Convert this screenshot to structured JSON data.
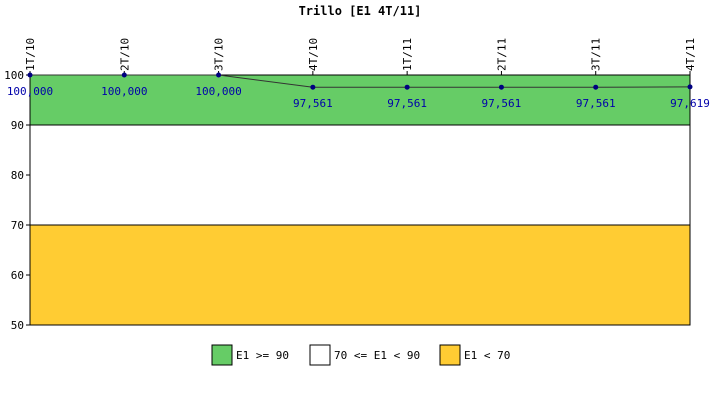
{
  "chart_data": {
    "type": "line",
    "title": "Trillo [E1 4T/11]",
    "xlabel": "",
    "ylabel": "",
    "categories": [
      "1T/10",
      "2T/10",
      "3T/10",
      "4T/10",
      "1T/11",
      "2T/11",
      "3T/11",
      "4T/11"
    ],
    "series": [
      {
        "values": [
          100,
          100,
          100,
          97.561,
          97.561,
          97.561,
          97.561,
          97.619
        ],
        "labels": [
          "100,000",
          "100,000",
          "100,000",
          "97,561",
          "97,561",
          "97,561",
          "97,561",
          "97,619"
        ],
        "color": "#000080"
      }
    ],
    "ylim": [
      50,
      100
    ],
    "yticks": [
      50,
      60,
      70,
      80,
      90,
      100
    ],
    "bands": [
      {
        "label": "E1 >= 90",
        "from": 90,
        "to": 100,
        "color": "#66cc66"
      },
      {
        "label": "70 <= E1 < 90",
        "from": 70,
        "to": 90,
        "color": "#ffffff"
      },
      {
        "label": "E1 < 70",
        "from": 50,
        "to": 70,
        "color": "#ffcc33"
      }
    ],
    "legend_position": "bottom-center",
    "grid": false
  }
}
